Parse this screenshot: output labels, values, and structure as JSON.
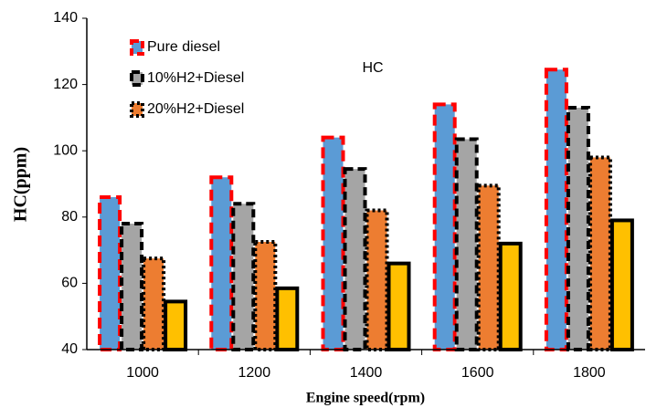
{
  "chart_data": {
    "type": "bar",
    "categories": [
      "1000",
      "1200",
      "1400",
      "1600",
      "1800"
    ],
    "series": [
      {
        "name": "Pure diesel",
        "color": "#5b9bd5",
        "values": [
          86,
          92,
          104,
          114,
          124.5
        ]
      },
      {
        "name": "10%H2+Diesel",
        "color": "#a5a5a5",
        "values": [
          78,
          84,
          94.5,
          103.5,
          113
        ]
      },
      {
        "name": "20%H2+Diesel",
        "color": "#ed7d31",
        "values": [
          67.5,
          72.5,
          82,
          89.5,
          98
        ]
      },
      {
        "color": "#ffc000",
        "values": [
          54.5,
          58.5,
          66,
          72,
          79
        ]
      }
    ],
    "annotation": "HC",
    "xlabel": "Engine speed(rpm)",
    "ylabel": "HC(ppm)",
    "ylim": [
      40,
      140
    ],
    "yticks": [
      40,
      60,
      80,
      100,
      120,
      140
    ],
    "grid": false
  }
}
